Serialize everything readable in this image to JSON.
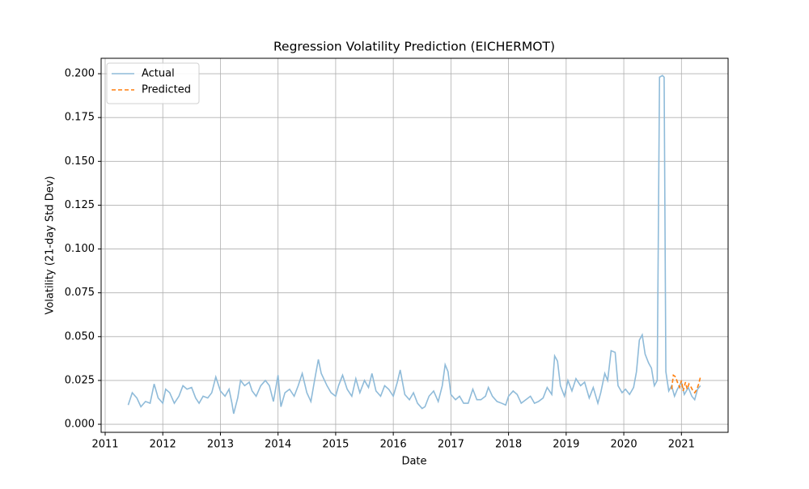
{
  "chart_data": {
    "type": "line",
    "title": "Regression Volatility Prediction (EICHERMOT)",
    "x_label": "Date",
    "y_label": "Volatility (21-day Std Dev)",
    "xlim": [
      2010.93,
      2021.81
    ],
    "xticks": [
      2011,
      2012,
      2013,
      2014,
      2015,
      2016,
      2017,
      2018,
      2019,
      2020,
      2021
    ],
    "ylim": [
      -0.0046,
      0.2088
    ],
    "yticks": [
      {
        "value": 0,
        "label": "0.000"
      },
      {
        "value": 0.025,
        "label": "0.025"
      },
      {
        "value": 0.05,
        "label": "0.050"
      },
      {
        "value": 0.075,
        "label": "0.075"
      },
      {
        "value": 0.1,
        "label": "0.100"
      },
      {
        "value": 0.125,
        "label": "0.125"
      },
      {
        "value": 0.15,
        "label": "0.150"
      },
      {
        "value": 0.175,
        "label": "0.175"
      },
      {
        "value": 0.2,
        "label": "0.200"
      }
    ],
    "grid": true,
    "legend": "upper left",
    "series": [
      {
        "name": "Actual",
        "color": "#8fbbd9",
        "linestyle": "solid",
        "x": [
          2011.4,
          2011.47,
          2011.55,
          2011.62,
          2011.7,
          2011.78,
          2011.85,
          2011.92,
          2012.0,
          2012.05,
          2012.12,
          2012.2,
          2012.28,
          2012.35,
          2012.42,
          2012.5,
          2012.57,
          2012.63,
          2012.7,
          2012.78,
          2012.85,
          2012.92,
          2013.0,
          2013.08,
          2013.15,
          2013.2,
          2013.23,
          2013.3,
          2013.35,
          2013.42,
          2013.5,
          2013.55,
          2013.62,
          2013.7,
          2013.78,
          2013.85,
          2013.92,
          2014.0,
          2014.05,
          2014.12,
          2014.2,
          2014.28,
          2014.35,
          2014.42,
          2014.5,
          2014.57,
          2014.65,
          2014.7,
          2014.75,
          2014.85,
          2014.92,
          2015.0,
          2015.05,
          2015.12,
          2015.2,
          2015.28,
          2015.35,
          2015.42,
          2015.5,
          2015.57,
          2015.63,
          2015.7,
          2015.78,
          2015.85,
          2015.92,
          2016.0,
          2016.07,
          2016.12,
          2016.2,
          2016.28,
          2016.35,
          2016.42,
          2016.5,
          2016.55,
          2016.62,
          2016.7,
          2016.78,
          2016.85,
          2016.9,
          2016.95,
          2017.0,
          2017.08,
          2017.15,
          2017.22,
          2017.3,
          2017.38,
          2017.45,
          2017.52,
          2017.6,
          2017.65,
          2017.72,
          2017.8,
          2017.88,
          2017.95,
          2018.0,
          2018.08,
          2018.15,
          2018.22,
          2018.3,
          2018.38,
          2018.45,
          2018.52,
          2018.6,
          2018.67,
          2018.75,
          2018.8,
          2018.85,
          2018.9,
          2018.97,
          2019.03,
          2019.1,
          2019.17,
          2019.25,
          2019.32,
          2019.4,
          2019.47,
          2019.55,
          2019.6,
          2019.67,
          2019.72,
          2019.78,
          2019.85,
          2019.9,
          2019.97,
          2020.03,
          2020.1,
          2020.17,
          2020.22,
          2020.27,
          2020.32,
          2020.37,
          2020.43,
          2020.48,
          2020.53,
          2020.58,
          2020.62,
          2020.67,
          2020.7,
          2020.73,
          2020.78,
          2020.83,
          2020.88,
          2020.93,
          2021.0,
          2021.05,
          2021.12,
          2021.18,
          2021.23,
          2021.28,
          2021.33
        ],
        "values": [
          0.011,
          0.018,
          0.015,
          0.01,
          0.013,
          0.012,
          0.023,
          0.015,
          0.012,
          0.02,
          0.018,
          0.012,
          0.016,
          0.022,
          0.02,
          0.021,
          0.015,
          0.012,
          0.016,
          0.015,
          0.018,
          0.027,
          0.019,
          0.016,
          0.02,
          0.012,
          0.006,
          0.015,
          0.025,
          0.022,
          0.024,
          0.019,
          0.016,
          0.022,
          0.025,
          0.022,
          0.013,
          0.028,
          0.01,
          0.018,
          0.02,
          0.016,
          0.022,
          0.029,
          0.018,
          0.013,
          0.028,
          0.037,
          0.029,
          0.022,
          0.018,
          0.016,
          0.022,
          0.028,
          0.02,
          0.016,
          0.026,
          0.018,
          0.025,
          0.021,
          0.029,
          0.019,
          0.016,
          0.022,
          0.02,
          0.016,
          0.024,
          0.031,
          0.017,
          0.014,
          0.018,
          0.012,
          0.009,
          0.01,
          0.016,
          0.019,
          0.013,
          0.022,
          0.034,
          0.03,
          0.017,
          0.014,
          0.016,
          0.012,
          0.012,
          0.02,
          0.014,
          0.014,
          0.016,
          0.021,
          0.016,
          0.013,
          0.012,
          0.011,
          0.016,
          0.019,
          0.017,
          0.012,
          0.014,
          0.016,
          0.012,
          0.013,
          0.015,
          0.021,
          0.017,
          0.039,
          0.036,
          0.022,
          0.016,
          0.025,
          0.019,
          0.026,
          0.022,
          0.024,
          0.015,
          0.021,
          0.012,
          0.018,
          0.029,
          0.025,
          0.042,
          0.041,
          0.022,
          0.018,
          0.02,
          0.017,
          0.021,
          0.03,
          0.048,
          0.051,
          0.04,
          0.035,
          0.032,
          0.022,
          0.025,
          0.198,
          0.199,
          0.198,
          0.03,
          0.019,
          0.022,
          0.016,
          0.02,
          0.024,
          0.017,
          0.021,
          0.016,
          0.014,
          0.02,
          0.022
        ]
      },
      {
        "name": "Predicted",
        "color": "#ff7f0e",
        "linestyle": "dashed",
        "x": [
          2020.83,
          2020.86,
          2020.9,
          2020.93,
          2020.97,
          2021.0,
          2021.03,
          2021.07,
          2021.1,
          2021.13,
          2021.17,
          2021.2,
          2021.23,
          2021.27,
          2021.3,
          2021.33
        ],
        "values": [
          0.02,
          0.028,
          0.027,
          0.024,
          0.021,
          0.025,
          0.019,
          0.024,
          0.02,
          0.023,
          0.021,
          0.019,
          0.018,
          0.02,
          0.023,
          0.027
        ]
      }
    ]
  }
}
